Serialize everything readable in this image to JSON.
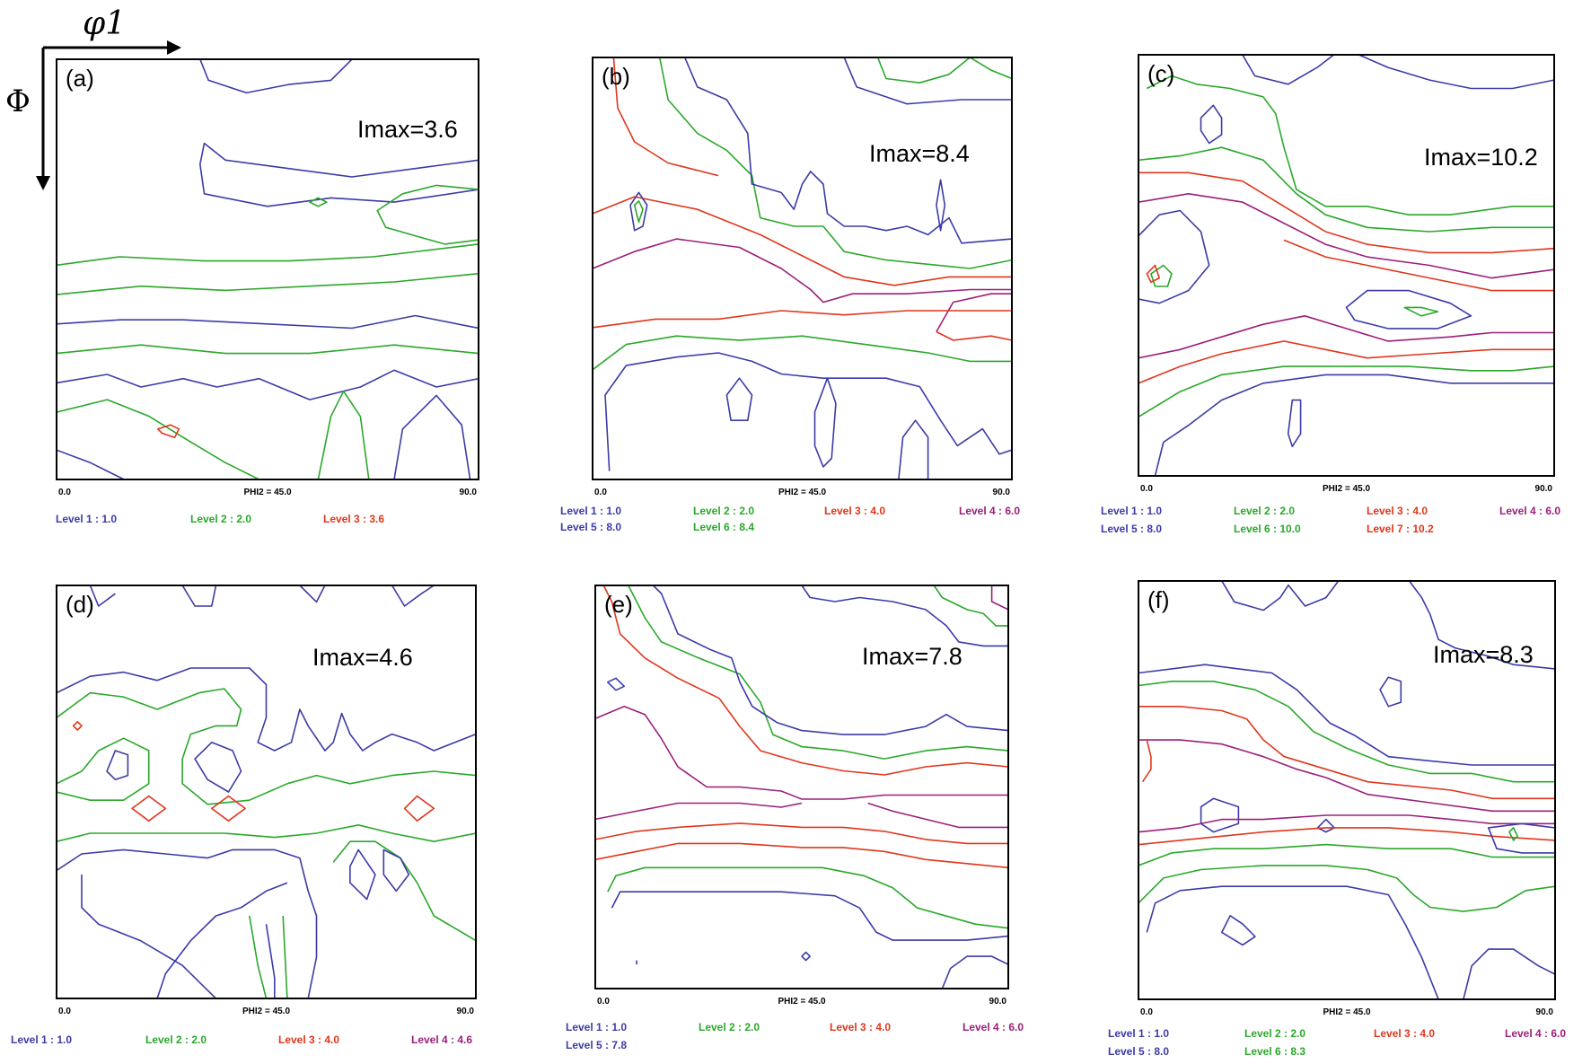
{
  "figure": {
    "axis_phi1_label": "φ1",
    "axis_phi_label": "Φ"
  },
  "colors": {
    "frame": "#000000",
    "levels": [
      "#3b3ba8",
      "#2aa82a",
      "#e0361c",
      "#9b1f7a",
      "#3b3ba8",
      "#2aa82a",
      "#e0361c"
    ]
  },
  "chart_data": [
    {
      "type": "contour",
      "panel": "(a)",
      "imax_label": "Imax=3.6",
      "imax": 3.6,
      "x_tick_left": "0.0",
      "x_tick_center": "PHI2 = 45.0",
      "x_tick_right": "90.0",
      "levels": [
        {
          "label": "Level 1 :  1.0",
          "value": 1.0
        },
        {
          "label": "Level 2 :  2.0",
          "value": 2.0
        },
        {
          "label": "Level 3 :  3.6",
          "value": 3.6
        }
      ]
    },
    {
      "type": "contour",
      "panel": "(b)",
      "imax_label": "Imax=8.4",
      "imax": 8.4,
      "x_tick_left": "0.0",
      "x_tick_center": "PHI2 = 45.0",
      "x_tick_right": "90.0",
      "levels": [
        {
          "label": "Level 1 :  1.0",
          "value": 1.0
        },
        {
          "label": "Level 2 :  2.0",
          "value": 2.0
        },
        {
          "label": "Level 3 :  4.0",
          "value": 4.0
        },
        {
          "label": "Level 4 :  6.0",
          "value": 6.0
        },
        {
          "label": "Level 5 :  8.0",
          "value": 8.0
        },
        {
          "label": "Level 6 :  8.4",
          "value": 8.4
        }
      ]
    },
    {
      "type": "contour",
      "panel": "(c)",
      "imax_label": "Imax=10.2",
      "imax": 10.2,
      "x_tick_left": "0.0",
      "x_tick_center": "PHI2 = 45.0",
      "x_tick_right": "90.0",
      "levels": [
        {
          "label": "Level 1 :  1.0",
          "value": 1.0
        },
        {
          "label": "Level 2 :  2.0",
          "value": 2.0
        },
        {
          "label": "Level 3 :  4.0",
          "value": 4.0
        },
        {
          "label": "Level 4 :  6.0",
          "value": 6.0
        },
        {
          "label": "Level 5 :  8.0",
          "value": 8.0
        },
        {
          "label": "Level 6 : 10.0",
          "value": 10.0
        },
        {
          "label": "Level 7 : 10.2",
          "value": 10.2
        }
      ]
    },
    {
      "type": "contour",
      "panel": "(d)",
      "imax_label": "Imax=4.6",
      "imax": 4.6,
      "x_tick_left": "0.0",
      "x_tick_center": "PHI2 = 45.0",
      "x_tick_right": "90.0",
      "levels": [
        {
          "label": "Level 1 :  1.0",
          "value": 1.0
        },
        {
          "label": "Level 2 :  2.0",
          "value": 2.0
        },
        {
          "label": "Level 3 :  4.0",
          "value": 4.0
        },
        {
          "label": "Level 4 :  4.6",
          "value": 4.6
        }
      ]
    },
    {
      "type": "contour",
      "panel": "(e)",
      "imax_label": "Imax=7.8",
      "imax": 7.8,
      "x_tick_left": "0.0",
      "x_tick_center": "PHI2 = 45.0",
      "x_tick_right": "90.0",
      "levels": [
        {
          "label": "Level 1 :  1.0",
          "value": 1.0
        },
        {
          "label": "Level 2 :  2.0",
          "value": 2.0
        },
        {
          "label": "Level 3 :  4.0",
          "value": 4.0
        },
        {
          "label": "Level 4 :  6.0",
          "value": 6.0
        },
        {
          "label": "Level 5 :  7.8",
          "value": 7.8
        }
      ]
    },
    {
      "type": "contour",
      "panel": "(f)",
      "imax_label": "Imax=8.3",
      "imax": 8.3,
      "x_tick_left": "0.0",
      "x_tick_center": "PHI2 = 45.0",
      "x_tick_right": "90.0",
      "levels": [
        {
          "label": "Level 1 :  1.0",
          "value": 1.0
        },
        {
          "label": "Level 2 :  2.0",
          "value": 2.0
        },
        {
          "label": "Level 3 :  4.0",
          "value": 4.0
        },
        {
          "label": "Level 4 :  6.0",
          "value": 6.0
        },
        {
          "label": "Level 5 :  8.0",
          "value": 8.0
        },
        {
          "label": "Level 6 :  8.3",
          "value": 8.3
        }
      ]
    }
  ]
}
